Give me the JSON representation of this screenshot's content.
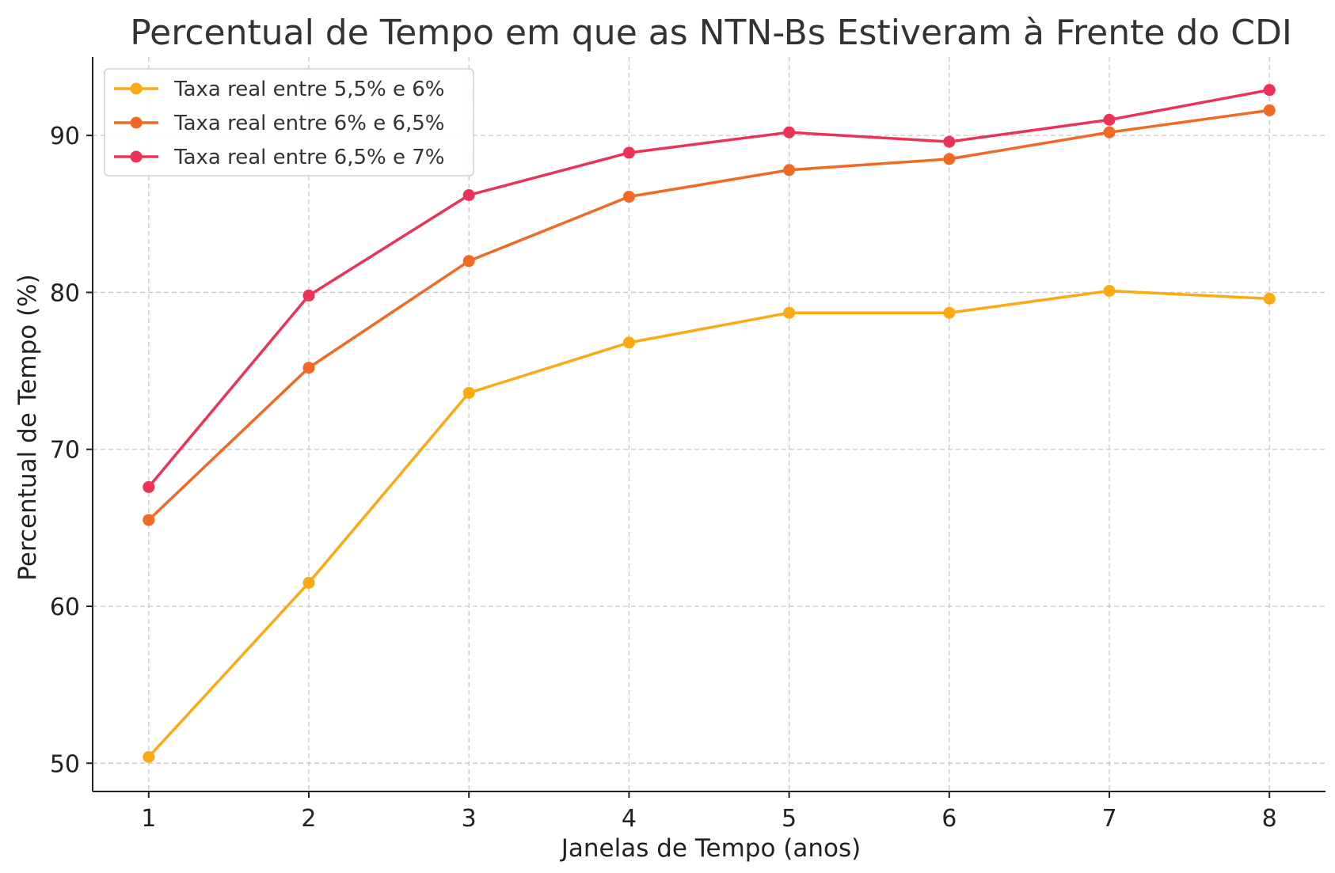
{
  "chart_data": {
    "type": "line",
    "title": "Percentual de Tempo em que as NTN-Bs Estiveram à Frente do CDI",
    "xlabel": "Janelas de Tempo (anos)",
    "ylabel": "Percentual de Tempo (%)",
    "x": [
      1,
      2,
      3,
      4,
      5,
      6,
      7,
      8
    ],
    "x_tick_labels": [
      "1",
      "2",
      "3",
      "4",
      "5",
      "6",
      "7",
      "8"
    ],
    "y_ticks": [
      50,
      60,
      70,
      80,
      90
    ],
    "y_tick_labels": [
      "50",
      "60",
      "70",
      "80",
      "90"
    ],
    "xlim": [
      0.65,
      8.35
    ],
    "ylim": [
      48.2,
      95.0
    ],
    "grid": true,
    "legend_position": "top-left",
    "series": [
      {
        "name": "Taxa real entre 5,5% e 6%",
        "color": "#FBAA14",
        "values": [
          50.4,
          61.5,
          73.6,
          76.8,
          78.7,
          78.7,
          80.1,
          79.6
        ]
      },
      {
        "name": "Taxa real entre 6% e 6,5%",
        "color": "#F06A25",
        "values": [
          65.5,
          75.2,
          82.0,
          86.1,
          87.8,
          88.5,
          90.2,
          91.6
        ]
      },
      {
        "name": "Taxa real entre 6,5% e 7%",
        "color": "#EC3357",
        "values": [
          67.6,
          79.8,
          86.2,
          88.9,
          90.2,
          89.6,
          91.0,
          92.9
        ]
      }
    ]
  }
}
